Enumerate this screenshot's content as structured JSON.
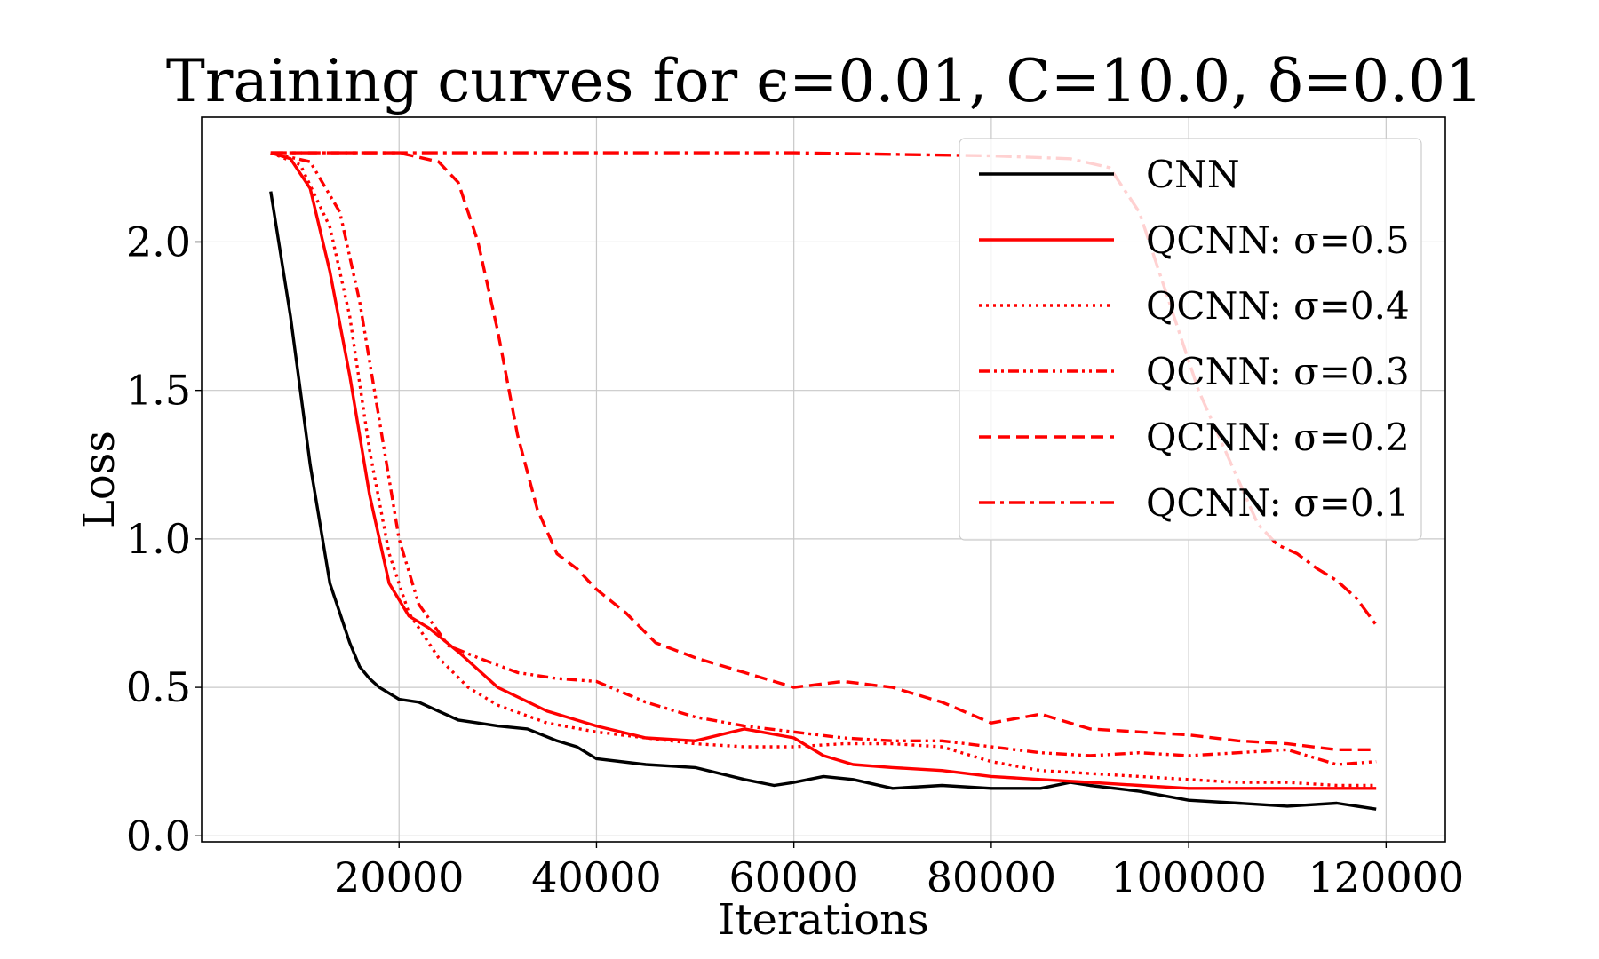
{
  "chart_data": {
    "type": "line",
    "title": "Training curves for ϵ=0.01, C=10.0, δ=0.01",
    "xlabel": "Iterations",
    "ylabel": "Loss",
    "xlim": [
      0,
      126000
    ],
    "ylim": [
      -0.02,
      2.42
    ],
    "x_ticks": [
      20000,
      40000,
      60000,
      80000,
      100000,
      120000
    ],
    "x_tick_labels": [
      "20000",
      "40000",
      "60000",
      "80000",
      "100000",
      "120000"
    ],
    "y_ticks": [
      0.0,
      0.5,
      1.0,
      1.5,
      2.0
    ],
    "y_tick_labels": [
      "0.0",
      "0.5",
      "1.0",
      "1.5",
      "2.0"
    ],
    "grid": true,
    "legend_placement": "top-right",
    "series": [
      {
        "name": "CNN",
        "color": "#000000",
        "style": "solid",
        "x": [
          7000,
          9000,
          11000,
          13000,
          15000,
          16000,
          17000,
          18000,
          20000,
          22000,
          24000,
          26000,
          28000,
          30000,
          33000,
          36000,
          38000,
          40000,
          45000,
          50000,
          55000,
          58000,
          60000,
          63000,
          66000,
          70000,
          75000,
          80000,
          85000,
          88000,
          90000,
          95000,
          100000,
          105000,
          110000,
          115000,
          119000
        ],
        "values": [
          2.17,
          1.75,
          1.25,
          0.85,
          0.65,
          0.57,
          0.53,
          0.5,
          0.46,
          0.45,
          0.42,
          0.39,
          0.38,
          0.37,
          0.36,
          0.32,
          0.3,
          0.26,
          0.24,
          0.23,
          0.19,
          0.17,
          0.18,
          0.2,
          0.19,
          0.16,
          0.17,
          0.16,
          0.16,
          0.18,
          0.17,
          0.15,
          0.12,
          0.11,
          0.1,
          0.11,
          0.09
        ]
      },
      {
        "name": "QCNN: σ=0.5",
        "color": "#ff0000",
        "style": "solid",
        "x": [
          7000,
          9000,
          11000,
          13000,
          15000,
          17000,
          19000,
          21000,
          23000,
          26000,
          30000,
          35000,
          40000,
          45000,
          50000,
          55000,
          60000,
          63000,
          66000,
          70000,
          75000,
          80000,
          85000,
          90000,
          95000,
          100000,
          105000,
          110000,
          115000,
          119000
        ],
        "values": [
          2.3,
          2.28,
          2.18,
          1.9,
          1.55,
          1.15,
          0.85,
          0.74,
          0.7,
          0.62,
          0.5,
          0.42,
          0.37,
          0.33,
          0.32,
          0.36,
          0.33,
          0.27,
          0.24,
          0.23,
          0.22,
          0.2,
          0.19,
          0.18,
          0.17,
          0.16,
          0.16,
          0.16,
          0.16,
          0.16
        ]
      },
      {
        "name": "QCNN: σ=0.4",
        "color": "#ff0000",
        "style": "dotted",
        "x": [
          7000,
          10000,
          13000,
          15000,
          17000,
          19000,
          21000,
          24000,
          27000,
          30000,
          35000,
          40000,
          45000,
          50000,
          55000,
          60000,
          65000,
          70000,
          75000,
          80000,
          85000,
          90000,
          95000,
          100000,
          105000,
          110000,
          115000,
          119000
        ],
        "values": [
          2.3,
          2.26,
          2.05,
          1.75,
          1.3,
          0.95,
          0.75,
          0.6,
          0.5,
          0.44,
          0.38,
          0.35,
          0.33,
          0.31,
          0.3,
          0.3,
          0.31,
          0.31,
          0.3,
          0.25,
          0.22,
          0.21,
          0.2,
          0.19,
          0.18,
          0.18,
          0.17,
          0.17
        ]
      },
      {
        "name": "QCNN: σ=0.3",
        "color": "#ff0000",
        "style": "dashdotdot",
        "x": [
          7000,
          11000,
          14000,
          16000,
          18000,
          20000,
          22000,
          25000,
          28000,
          32000,
          36000,
          40000,
          45000,
          50000,
          55000,
          60000,
          65000,
          70000,
          75000,
          80000,
          85000,
          90000,
          95000,
          100000,
          105000,
          110000,
          115000,
          119000
        ],
        "values": [
          2.3,
          2.27,
          2.1,
          1.8,
          1.4,
          1.0,
          0.78,
          0.64,
          0.6,
          0.55,
          0.53,
          0.52,
          0.45,
          0.4,
          0.37,
          0.35,
          0.33,
          0.32,
          0.32,
          0.3,
          0.28,
          0.27,
          0.28,
          0.27,
          0.28,
          0.29,
          0.24,
          0.25
        ]
      },
      {
        "name": "QCNN: σ=0.2",
        "color": "#ff0000",
        "style": "dashed",
        "x": [
          7000,
          15000,
          20000,
          24000,
          26000,
          28000,
          30000,
          32000,
          34000,
          36000,
          38000,
          40000,
          43000,
          46000,
          50000,
          55000,
          60000,
          65000,
          70000,
          75000,
          80000,
          85000,
          90000,
          95000,
          100000,
          105000,
          110000,
          115000,
          119000
        ],
        "values": [
          2.3,
          2.3,
          2.3,
          2.27,
          2.2,
          2.0,
          1.7,
          1.35,
          1.1,
          0.95,
          0.9,
          0.83,
          0.75,
          0.65,
          0.6,
          0.55,
          0.5,
          0.52,
          0.5,
          0.45,
          0.38,
          0.41,
          0.36,
          0.35,
          0.34,
          0.32,
          0.31,
          0.29,
          0.29
        ]
      },
      {
        "name": "QCNN: σ=0.1",
        "color": "#ff0000",
        "style": "dashdot",
        "x": [
          7000,
          20000,
          40000,
          60000,
          80000,
          88000,
          92000,
          95000,
          98000,
          101000,
          103000,
          105000,
          107000,
          109000,
          111000,
          113000,
          115000,
          117000,
          119000
        ],
        "values": [
          2.3,
          2.3,
          2.3,
          2.3,
          2.29,
          2.28,
          2.25,
          2.1,
          1.8,
          1.5,
          1.35,
          1.2,
          1.05,
          0.98,
          0.95,
          0.9,
          0.86,
          0.8,
          0.71
        ]
      }
    ]
  }
}
